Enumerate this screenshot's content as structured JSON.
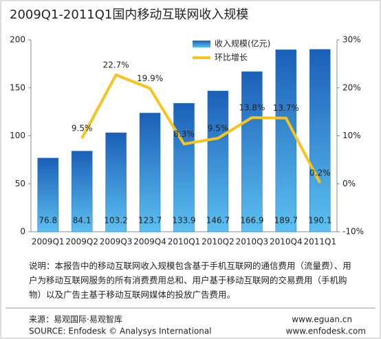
{
  "chart_data": {
    "type": "bar",
    "title": "2009Q1-2011Q1国内移动互联网收入规模",
    "categories": [
      "2009Q1",
      "2009Q2",
      "2009Q3",
      "2009Q4",
      "2010Q1",
      "2010Q2",
      "2010Q3",
      "2010Q4",
      "2011Q1"
    ],
    "series": [
      {
        "name": "收入规模(亿元)",
        "type": "bar",
        "color": "#1f6fc5",
        "values": [
          76.8,
          84.1,
          103.2,
          123.7,
          133.9,
          146.7,
          166.9,
          189.7,
          190.1
        ]
      },
      {
        "name": "环比增长",
        "type": "line",
        "axis": "y2",
        "color": "#f6c41c",
        "values": [
          null,
          9.5,
          22.7,
          19.9,
          8.3,
          9.5,
          13.8,
          13.7,
          0.2
        ],
        "value_labels": [
          null,
          "9.5%",
          "22.7%",
          "19.9%",
          "8.3%",
          "9.5%",
          "13.8%",
          "13.7%",
          "0.2%"
        ]
      }
    ],
    "ylim": [
      0,
      200
    ],
    "yticks": [
      0,
      50,
      100,
      150,
      200
    ],
    "y2lim": [
      -10,
      30
    ],
    "y2ticks": [
      {
        "value": -10,
        "label": "-10%"
      },
      {
        "value": 0,
        "label": "0%"
      },
      {
        "value": 10,
        "label": "10%"
      },
      {
        "value": 20,
        "label": "20%"
      },
      {
        "value": 30,
        "label": "30%"
      }
    ],
    "grid": false,
    "legend": "top-right",
    "note": "说明：本报告中的移动互联网收入规模包含基于手机互联网的通信费用（流量费）、用户为移动互联网服务的所有消费费用总和、用户基于移动互联网的交易费用（手机购物）以及广告主基于移动互联网媒体的投放广告费用。",
    "source": [
      "来源：易观国际·易观智库",
      "SOURCE: Enfodesk © Analysys International"
    ],
    "websites": [
      "www.eguan.cn",
      "www.enfodesk.com"
    ]
  }
}
